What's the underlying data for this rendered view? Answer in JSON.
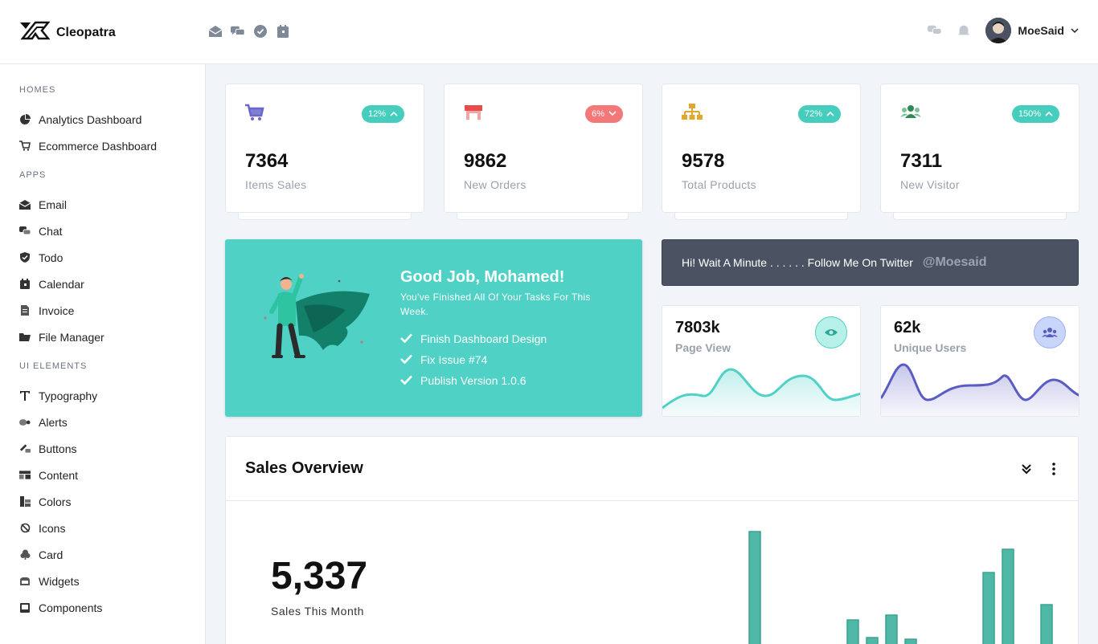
{
  "header": {
    "brand": "Cleopatra",
    "icons": [
      "email-icon",
      "chat-icon",
      "check-icon",
      "calendar-icon"
    ],
    "user_name": "MoeSaid"
  },
  "sidebar": {
    "sections": [
      {
        "title": "HOMES",
        "items": [
          {
            "label": "Analytics Dashboard",
            "icon": "pie-chart-icon"
          },
          {
            "label": "Ecommerce Dashboard",
            "icon": "cart-icon"
          }
        ]
      },
      {
        "title": "APPS",
        "items": [
          {
            "label": "Email",
            "icon": "envelope-icon"
          },
          {
            "label": "Chat",
            "icon": "chat-icon"
          },
          {
            "label": "Todo",
            "icon": "shield-check-icon"
          },
          {
            "label": "Calendar",
            "icon": "calendar-icon"
          },
          {
            "label": "Invoice",
            "icon": "file-icon"
          },
          {
            "label": "File Manager",
            "icon": "folder-icon"
          }
        ]
      },
      {
        "title": "UI ELEMENTS",
        "items": [
          {
            "label": "Typography",
            "icon": "text-icon"
          },
          {
            "label": "Alerts",
            "icon": "alert-icon"
          },
          {
            "label": "Buttons",
            "icon": "hand-icon"
          },
          {
            "label": "Content",
            "icon": "content-icon"
          },
          {
            "label": "Colors",
            "icon": "palette-icon"
          },
          {
            "label": "Icons",
            "icon": "icons-icon"
          },
          {
            "label": "Card",
            "icon": "card-icon"
          },
          {
            "label": "Widgets",
            "icon": "widgets-icon"
          },
          {
            "label": "Components",
            "icon": "components-icon"
          }
        ]
      }
    ]
  },
  "stats": [
    {
      "value": "7364",
      "label": "Items Sales",
      "badge": "12%",
      "trend": "up",
      "icon": "cart-icon",
      "color": "#6a67ce"
    },
    {
      "value": "9862",
      "label": "New Orders",
      "badge": "6%",
      "trend": "down",
      "icon": "store-icon",
      "color": "#e74c4c"
    },
    {
      "value": "9578",
      "label": "Total Products",
      "badge": "72%",
      "trend": "up",
      "icon": "sitemap-icon",
      "color": "#e0a92e"
    },
    {
      "value": "7311",
      "label": "New Visitor",
      "badge": "150%",
      "trend": "up",
      "icon": "users-icon",
      "color": "#2e8b57"
    }
  ],
  "promo": {
    "title": "Good Job, Mohamed!",
    "subtitle": "You've Finished All Of Your Tasks For This Week.",
    "tasks": [
      "Finish Dashboard Design",
      "Fix Issue #74",
      "Publish Version 1.0.6"
    ]
  },
  "twitter": {
    "text": "Hi! Wait A Minute . . . . . . Follow Me On Twitter",
    "handle": "@Moesaid"
  },
  "mini_cards": [
    {
      "value": "7803k",
      "label": "Page View",
      "icon": "eye-icon",
      "color": "#4fd1c5"
    },
    {
      "value": "62k",
      "label": "Unique Users",
      "icon": "users-icon",
      "color": "#5a5cc2"
    }
  ],
  "sales": {
    "title": "Sales Overview",
    "value": "5,337",
    "label": "Sales This Month"
  },
  "colors": {
    "accent": "#4fd1c5",
    "danger": "#f3787a",
    "dark": "#4b5362"
  }
}
